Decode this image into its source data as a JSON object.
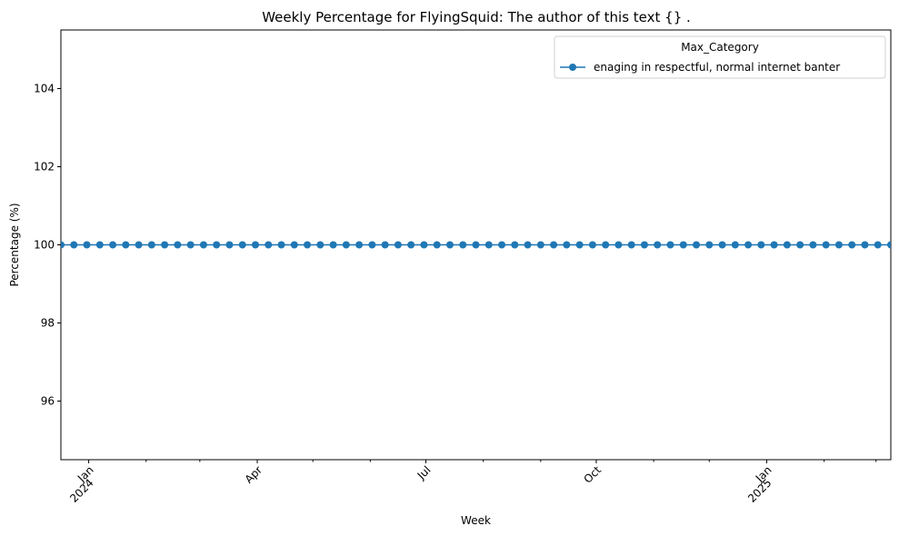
{
  "chart_data": {
    "type": "line",
    "title": "Weekly Percentage for FlyingSquid: The author of this text {} .",
    "xlabel": "Week",
    "ylabel": "Percentage (%)",
    "ylim": [
      94.5,
      105.5
    ],
    "xlim": [
      "2023-12-17",
      "2025-03-09"
    ],
    "y_ticks": [
      96,
      98,
      100,
      102,
      104
    ],
    "x_ticks": [
      {
        "date": "2024-01-01",
        "label": "Jan",
        "sublabel": "2024"
      },
      {
        "date": "2024-04-01",
        "label": "Apr",
        "sublabel": ""
      },
      {
        "date": "2024-07-01",
        "label": "Jul",
        "sublabel": ""
      },
      {
        "date": "2024-10-01",
        "label": "Oct",
        "sublabel": ""
      },
      {
        "date": "2025-01-01",
        "label": "Jan",
        "sublabel": "2025"
      }
    ],
    "x_minor_ticks": [
      "2024-02-01",
      "2024-03-01",
      "2024-05-01",
      "2024-06-01",
      "2024-08-01",
      "2024-09-01",
      "2024-11-01",
      "2024-12-01",
      "2025-02-01",
      "2025-03-01"
    ],
    "grid": false,
    "legend": {
      "title": "Max_Category",
      "placement": "top-right"
    },
    "series": [
      {
        "name": "enaging in respectful, normal internet banter",
        "color": "#1f77b4",
        "marker": "circle",
        "x": [
          "2023-12-17",
          "2023-12-24",
          "2023-12-31",
          "2024-01-07",
          "2024-01-14",
          "2024-01-21",
          "2024-01-28",
          "2024-02-04",
          "2024-02-11",
          "2024-02-18",
          "2024-02-25",
          "2024-03-03",
          "2024-03-10",
          "2024-03-17",
          "2024-03-24",
          "2024-03-31",
          "2024-04-07",
          "2024-04-14",
          "2024-04-21",
          "2024-04-28",
          "2024-05-05",
          "2024-05-12",
          "2024-05-19",
          "2024-05-26",
          "2024-06-02",
          "2024-06-09",
          "2024-06-16",
          "2024-06-23",
          "2024-06-30",
          "2024-07-07",
          "2024-07-14",
          "2024-07-21",
          "2024-07-28",
          "2024-08-04",
          "2024-08-11",
          "2024-08-18",
          "2024-08-25",
          "2024-09-01",
          "2024-09-08",
          "2024-09-15",
          "2024-09-22",
          "2024-09-29",
          "2024-10-06",
          "2024-10-13",
          "2024-10-20",
          "2024-10-27",
          "2024-11-03",
          "2024-11-10",
          "2024-11-17",
          "2024-11-24",
          "2024-12-01",
          "2024-12-08",
          "2024-12-15",
          "2024-12-22",
          "2024-12-29",
          "2025-01-05",
          "2025-01-12",
          "2025-01-19",
          "2025-01-26",
          "2025-02-02",
          "2025-02-09",
          "2025-02-16",
          "2025-02-23",
          "2025-03-02",
          "2025-03-09"
        ],
        "y": [
          100,
          100,
          100,
          100,
          100,
          100,
          100,
          100,
          100,
          100,
          100,
          100,
          100,
          100,
          100,
          100,
          100,
          100,
          100,
          100,
          100,
          100,
          100,
          100,
          100,
          100,
          100,
          100,
          100,
          100,
          100,
          100,
          100,
          100,
          100,
          100,
          100,
          100,
          100,
          100,
          100,
          100,
          100,
          100,
          100,
          100,
          100,
          100,
          100,
          100,
          100,
          100,
          100,
          100,
          100,
          100,
          100,
          100,
          100,
          100,
          100,
          100,
          100,
          100,
          100
        ]
      }
    ]
  }
}
